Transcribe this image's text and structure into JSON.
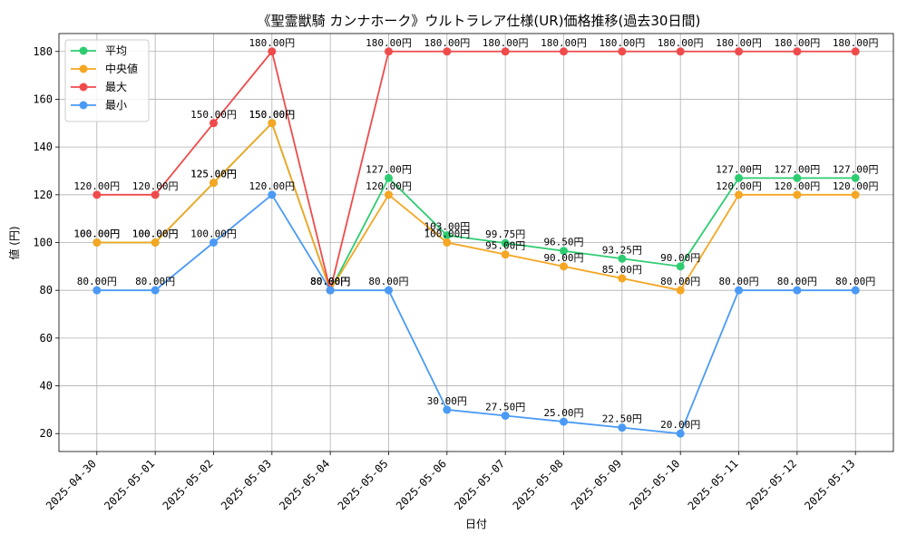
{
  "chart_data": {
    "type": "line",
    "title": "《聖霊獣騎 カンナホーク》ウルトラレア仕様(UR)価格推移(過去30日間)",
    "xlabel": "日付",
    "ylabel": "値 (円)",
    "categories": [
      "2025-04-30",
      "2025-05-01",
      "2025-05-02",
      "2025-05-03",
      "2025-05-04",
      "2025-05-05",
      "2025-05-06",
      "2025-05-07",
      "2025-05-08",
      "2025-05-09",
      "2025-05-10",
      "2025-05-11",
      "2025-05-12",
      "2025-05-13"
    ],
    "ylim": [
      12.5,
      187.5
    ],
    "yticks": [
      20,
      40,
      60,
      80,
      100,
      120,
      140,
      160,
      180
    ],
    "grid": true,
    "legend_position": "top-left",
    "label_suffix": "円",
    "series": [
      {
        "name": "平均",
        "color": "#2ecc71",
        "values": [
          100,
          100,
          125,
          150,
          80,
          127,
          103,
          99.75,
          96.5,
          93.25,
          90,
          127,
          127,
          127
        ]
      },
      {
        "name": "中央値",
        "color": "#f5a623",
        "values": [
          100,
          100,
          125,
          150,
          80,
          120,
          100,
          95,
          90,
          85,
          80,
          120,
          120,
          120
        ]
      },
      {
        "name": "最大",
        "color": "#ef4b4b",
        "values": [
          120,
          120,
          150,
          180,
          80,
          180,
          180,
          180,
          180,
          180,
          180,
          180,
          180,
          180
        ]
      },
      {
        "name": "最小",
        "color": "#4a9af5",
        "values": [
          80,
          80,
          100,
          120,
          80,
          80,
          30,
          27.5,
          25,
          22.5,
          20,
          80,
          80,
          80
        ]
      }
    ]
  }
}
